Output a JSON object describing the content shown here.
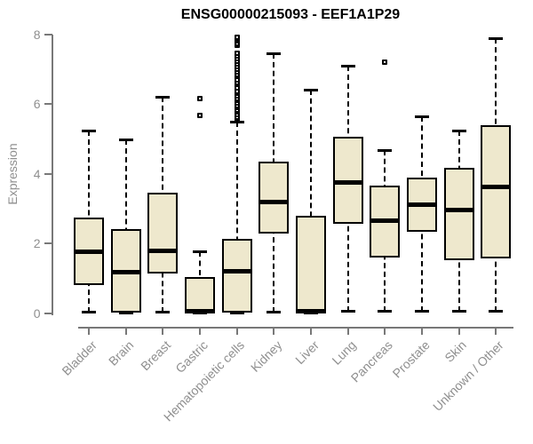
{
  "page": {
    "title": "ENSG00000215093 - EEF1A1P29"
  },
  "chart_data": {
    "type": "boxplot",
    "title": "ENSG00000215093 - EEF1A1P29",
    "xlabel": "",
    "ylabel": "Expression",
    "ylim": [
      0,
      8
    ],
    "yticks": [
      0,
      2,
      4,
      6,
      8
    ],
    "grid": false,
    "legend": "none",
    "categories": [
      "Bladder",
      "Brain",
      "Breast",
      "Gastric",
      "Hematopoietic cells",
      "Kidney",
      "Liver",
      "Lung",
      "Pancreas",
      "Prostate",
      "Skin",
      "Unknown / Other"
    ],
    "boxes": [
      {
        "category": "Bladder",
        "whisker_low": 0.02,
        "q1": 0.79,
        "median": 1.76,
        "q3": 2.74,
        "whisker_high": 5.23,
        "outliers": []
      },
      {
        "category": "Brain",
        "whisker_low": 0.0,
        "q1": 0.0,
        "median": 1.18,
        "q3": 2.42,
        "whisker_high": 4.97,
        "outliers": []
      },
      {
        "category": "Breast",
        "whisker_low": 0.02,
        "q1": 1.13,
        "median": 1.78,
        "q3": 3.46,
        "whisker_high": 6.2,
        "outliers": []
      },
      {
        "category": "Gastric",
        "whisker_low": 0.0,
        "q1": 0.0,
        "median": 0.04,
        "q3": 1.02,
        "whisker_high": 1.77,
        "outliers": [
          5.67,
          6.15
        ]
      },
      {
        "category": "Hematopoietic cells",
        "whisker_low": 0.0,
        "q1": 0.0,
        "median": 1.19,
        "q3": 2.12,
        "whisker_high": 5.49,
        "outliers": [
          5.57,
          5.63,
          5.7,
          5.76,
          5.83,
          5.9,
          5.96,
          6.03,
          6.1,
          6.16,
          6.23,
          6.3,
          6.36,
          6.45,
          6.55,
          6.62,
          6.7,
          6.78,
          6.85,
          6.92,
          7.0,
          7.08,
          7.15,
          7.22,
          7.3,
          7.38,
          7.45,
          7.67,
          7.73,
          7.8,
          7.87,
          7.92
        ]
      },
      {
        "category": "Kidney",
        "whisker_low": 0.02,
        "q1": 2.29,
        "median": 3.19,
        "q3": 4.35,
        "whisker_high": 7.45,
        "outliers": []
      },
      {
        "category": "Liver",
        "whisker_low": 0.0,
        "q1": 0.0,
        "median": 0.04,
        "q3": 2.78,
        "whisker_high": 6.42,
        "outliers": []
      },
      {
        "category": "Lung",
        "whisker_low": 0.03,
        "q1": 2.55,
        "median": 3.74,
        "q3": 5.05,
        "whisker_high": 7.1,
        "outliers": []
      },
      {
        "category": "Pancreas",
        "whisker_low": 0.03,
        "q1": 1.59,
        "median": 2.64,
        "q3": 3.66,
        "whisker_high": 4.67,
        "outliers": [
          7.2
        ]
      },
      {
        "category": "Prostate",
        "whisker_low": 0.03,
        "q1": 2.32,
        "median": 3.11,
        "q3": 3.88,
        "whisker_high": 5.65,
        "outliers": []
      },
      {
        "category": "Skin",
        "whisker_low": 0.03,
        "q1": 1.52,
        "median": 2.96,
        "q3": 4.17,
        "whisker_high": 5.24,
        "outliers": []
      },
      {
        "category": "Unknown / Other",
        "whisker_low": 0.03,
        "q1": 1.57,
        "median": 3.61,
        "q3": 5.4,
        "whisker_high": 7.89,
        "outliers": []
      }
    ],
    "colors": {
      "box_fill": "#EEE8CD",
      "box_border": "#000000",
      "median": "#000000",
      "whisker": "#000000",
      "axis": "#787878",
      "tick_label": "#8f8f8f",
      "title": "#000000",
      "background": "#ffffff"
    }
  }
}
